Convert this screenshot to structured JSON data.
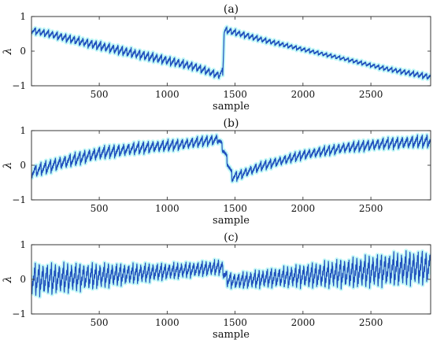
{
  "chart_data": [
    {
      "type": "line",
      "title": "(a)",
      "xlabel": "sample",
      "ylabel": "λ",
      "xlim": [
        1,
        2940
      ],
      "ylim": [
        -1,
        1
      ],
      "xticks": [
        500,
        1000,
        1500,
        2000,
        2500
      ],
      "yticks": [
        -1,
        0,
        1
      ],
      "grid": false,
      "series": [
        {
          "color": "#1f4fbd",
          "period": 32,
          "amplitude": [
            0.07,
            0.16
          ],
          "x": [
            1,
            150,
            400,
            700,
            1000,
            1200,
            1380,
            1410,
            1420,
            1440,
            1700,
            2000,
            2300,
            2600,
            2940
          ],
          "y": [
            0.6,
            0.48,
            0.24,
            -0.02,
            -0.27,
            -0.45,
            -0.7,
            -0.58,
            0.58,
            0.6,
            0.33,
            0.05,
            -0.22,
            -0.5,
            -0.75
          ]
        }
      ]
    },
    {
      "type": "line",
      "title": "(b)",
      "xlabel": "sample",
      "ylabel": "λ",
      "xlim": [
        1,
        2940
      ],
      "ylim": [
        -1,
        1
      ],
      "xticks": [
        500,
        1000,
        1500,
        2000,
        2500
      ],
      "yticks": [
        -1,
        0,
        1
      ],
      "grid": false,
      "series": [
        {
          "color": "#1f4fbd",
          "period": 36,
          "amplitude": [
            0.16,
            0.22
          ],
          "x": [
            1,
            200,
            500,
            800,
            1100,
            1380,
            1420,
            1480,
            1520,
            1700,
            2000,
            2300,
            2600,
            2940
          ],
          "y": [
            -0.2,
            0.05,
            0.35,
            0.5,
            0.6,
            0.75,
            0.4,
            -0.35,
            -0.3,
            -0.02,
            0.3,
            0.5,
            0.62,
            0.7
          ]
        }
      ]
    },
    {
      "type": "line",
      "title": "(c)",
      "xlabel": "sample",
      "ylabel": "λ",
      "xlim": [
        1,
        2940
      ],
      "ylim": [
        -1,
        1
      ],
      "xticks": [
        500,
        1000,
        1500,
        2000,
        2500
      ],
      "yticks": [
        -1,
        0,
        1
      ],
      "grid": false,
      "series": [
        {
          "color": "#1f4fbd",
          "period": 30,
          "amplitude": [
            0.25,
            0.55
          ],
          "x": [
            1,
            300,
            600,
            900,
            1200,
            1400,
            1440,
            1500,
            1800,
            2100,
            2400,
            2700,
            2940
          ],
          "y": [
            -0.02,
            0.05,
            0.12,
            0.2,
            0.28,
            0.35,
            0.0,
            -0.05,
            0.05,
            0.12,
            0.2,
            0.3,
            0.35
          ]
        }
      ]
    }
  ]
}
